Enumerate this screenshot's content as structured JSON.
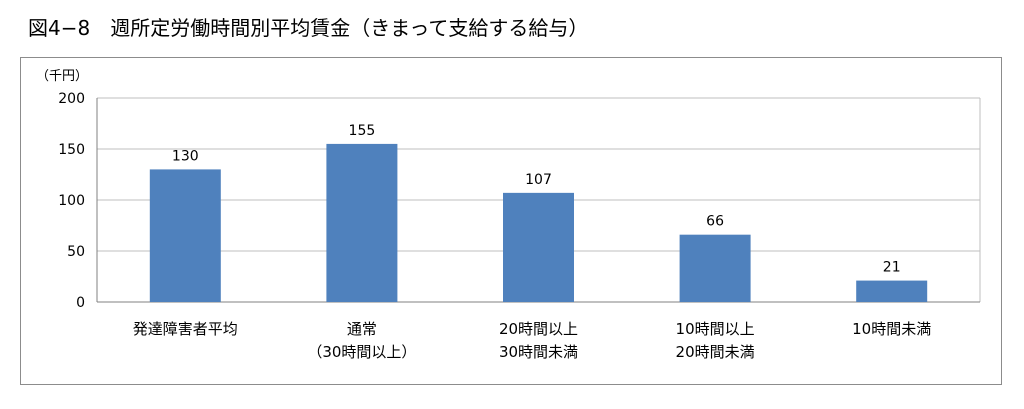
{
  "figure_title": "図4−8　週所定労働時間別平均賃金（きまって支給する給与）",
  "chart_data": {
    "type": "bar",
    "unit_label": "（千円）",
    "categories": [
      [
        "発達障害者平均"
      ],
      [
        "通常",
        "（30時間以上）"
      ],
      [
        "20時間以上",
        "30時間未満"
      ],
      [
        "10時間以上",
        "20時間未満"
      ],
      [
        "10時間未満"
      ]
    ],
    "values": [
      130,
      155,
      107,
      66,
      21
    ],
    "data_labels": [
      "130",
      "155",
      "107",
      "66",
      "21"
    ],
    "y_ticks": [
      "0",
      "50",
      "100",
      "150",
      "200"
    ],
    "ylim": [
      0,
      200
    ],
    "grid": true,
    "legend": "none",
    "colors": {
      "bar": "#4f81bd",
      "grid": "#bfbfbf",
      "axis": "#808080"
    }
  }
}
